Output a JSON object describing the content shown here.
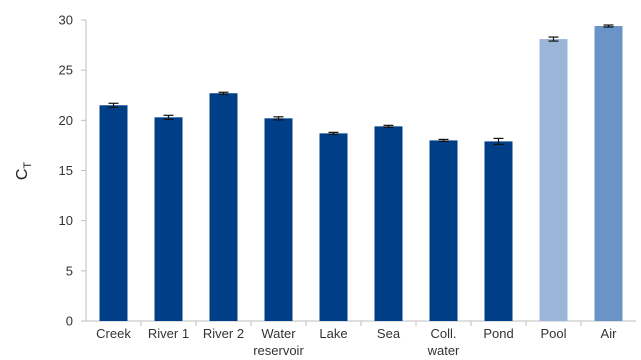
{
  "chart_data": {
    "type": "bar",
    "categories": [
      [
        "Creek"
      ],
      [
        "River 1"
      ],
      [
        "River 2"
      ],
      [
        "Water",
        "reservoir"
      ],
      [
        "Lake"
      ],
      [
        "Sea"
      ],
      [
        "Coll.",
        "water"
      ],
      [
        "Pond"
      ],
      [
        "Pool"
      ],
      [
        "Air"
      ]
    ],
    "values": [
      21.5,
      20.3,
      22.7,
      20.2,
      18.7,
      19.4,
      18.0,
      17.9,
      28.1,
      29.4
    ],
    "errors": [
      0.2,
      0.2,
      0.1,
      0.15,
      0.1,
      0.1,
      0.1,
      0.3,
      0.2,
      0.1
    ],
    "bar_colors": [
      "#003f87",
      "#003f87",
      "#003f87",
      "#003f87",
      "#003f87",
      "#003f87",
      "#003f87",
      "#003f87",
      "#9cb6da",
      "#6a94c8"
    ],
    "title": "",
    "xlabel": "",
    "ylabel": {
      "main": "C",
      "sub": "T"
    },
    "ylim": [
      0,
      30
    ],
    "yticks": [
      0,
      5,
      10,
      15,
      20,
      25,
      30
    ],
    "grid": false,
    "legend": "none"
  }
}
